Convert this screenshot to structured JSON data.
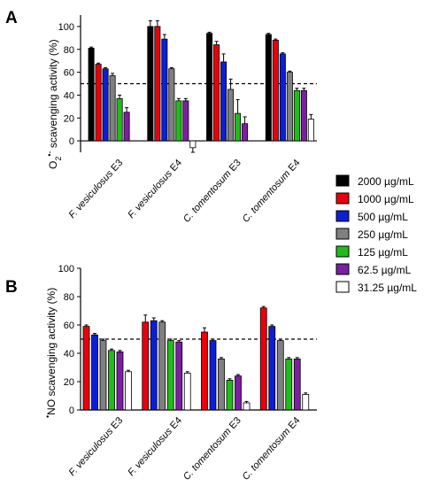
{
  "chart_data": [
    {
      "type": "bar",
      "panel": "A",
      "ylabel": "O2•- scavenging activity (%)",
      "ylabel_main": "O",
      "ylabel_sub": "2",
      "ylabel_sup": "•-",
      "ylabel_rest": " scavenging activity (%)",
      "ylim": [
        -10,
        110
      ],
      "yticks": [
        0,
        20,
        40,
        60,
        80,
        100
      ],
      "reference_line": 50,
      "categories": [
        "F. vesiculosus E3",
        "F. vesiculosus E4",
        "C. tomentosum E3",
        "C. tomentosum E4"
      ],
      "category_parts": [
        {
          "genus": "F.",
          "species": "vesiculosus",
          "extract": "E3"
        },
        {
          "genus": "F.",
          "species": "vesiculosus",
          "extract": "E4"
        },
        {
          "genus": "C.",
          "species": "tomentosum",
          "extract": "E3"
        },
        {
          "genus": "C.",
          "species": "tomentosum",
          "extract": "E4"
        }
      ],
      "series": [
        {
          "name": "2000 µg/mL",
          "color": "#000000",
          "values": [
            81,
            100,
            94,
            93
          ],
          "errors": [
            1,
            5,
            1,
            1
          ]
        },
        {
          "name": "1000 µg/mL",
          "color": "#e8000b",
          "values": [
            67,
            100,
            84,
            88
          ],
          "errors": [
            1,
            5,
            3,
            1
          ]
        },
        {
          "name": "500 µg/mL",
          "color": "#0a1fd6",
          "values": [
            63,
            89,
            69,
            76
          ],
          "errors": [
            1,
            4,
            7,
            1
          ]
        },
        {
          "name": "250 µg/mL",
          "color": "#808080",
          "values": [
            57,
            63,
            45,
            60
          ],
          "errors": [
            2,
            1,
            9,
            1
          ]
        },
        {
          "name": "125 µg/mL",
          "color": "#22bb1b",
          "values": [
            37,
            35,
            24,
            44
          ],
          "errors": [
            3,
            2,
            12,
            2
          ]
        },
        {
          "name": "62.5 µg/mL",
          "color": "#7b1fa2",
          "values": [
            25,
            35,
            15,
            44
          ],
          "errors": [
            4,
            2,
            6,
            2
          ]
        },
        {
          "name": "31.25 µg/mL",
          "color": "#ffffff",
          "values": [
            null,
            -6,
            null,
            19
          ],
          "errors": [
            null,
            4,
            null,
            4
          ]
        }
      ]
    },
    {
      "type": "bar",
      "panel": "B",
      "ylabel": "•NO scavenging activity (%)",
      "ylabel_sup": "•",
      "ylabel_rest": "NO scavenging activity (%)",
      "ylim": [
        0,
        100
      ],
      "yticks": [
        0,
        20,
        40,
        60,
        80,
        100
      ],
      "reference_line": 50,
      "categories": [
        "F. vesiculosus E3",
        "F. vesiculosus E4",
        "C. tomentosum E3",
        "C. tomentosum E4"
      ],
      "category_parts": [
        {
          "genus": "F.",
          "species": "vesiculosus",
          "extract": "E3"
        },
        {
          "genus": "F.",
          "species": "vesiculosus",
          "extract": "E4"
        },
        {
          "genus": "C.",
          "species": "tomentosum",
          "extract": "E3"
        },
        {
          "genus": "C.",
          "species": "tomentosum",
          "extract": "E4"
        }
      ],
      "series": [
        {
          "name": "1000 µg/mL",
          "color": "#e8000b",
          "values": [
            59,
            62,
            55,
            72
          ],
          "errors": [
            1,
            5,
            3,
            1
          ]
        },
        {
          "name": "500 µg/mL",
          "color": "#0a1fd6",
          "values": [
            53,
            63,
            49,
            59
          ],
          "errors": [
            1,
            2,
            1,
            1
          ]
        },
        {
          "name": "250 µg/mL",
          "color": "#808080",
          "values": [
            49,
            62,
            36,
            49
          ],
          "errors": [
            1,
            1,
            1,
            1
          ]
        },
        {
          "name": "125 µg/mL",
          "color": "#22bb1b",
          "values": [
            42,
            49,
            21,
            36
          ],
          "errors": [
            1,
            1,
            1,
            1
          ]
        },
        {
          "name": "62.5 µg/mL",
          "color": "#7b1fa2",
          "values": [
            41,
            48,
            24,
            36
          ],
          "errors": [
            1,
            1,
            1,
            1
          ]
        },
        {
          "name": "31.25 µg/mL",
          "color": "#ffffff",
          "values": [
            27,
            26,
            5,
            11
          ],
          "errors": [
            1,
            1,
            1,
            1
          ]
        }
      ]
    }
  ],
  "legend": [
    {
      "name": "2000 µg/mL",
      "color": "#000000"
    },
    {
      "name": "1000 µg/mL",
      "color": "#e8000b"
    },
    {
      "name": "500 µg/mL",
      "color": "#0a1fd6"
    },
    {
      "name": "250 µg/mL",
      "color": "#808080"
    },
    {
      "name": "125 µg/mL",
      "color": "#22bb1b"
    },
    {
      "name": "62.5 µg/mL",
      "color": "#7b1fa2"
    },
    {
      "name": "31.25 µg/mL",
      "color": "#ffffff"
    }
  ]
}
